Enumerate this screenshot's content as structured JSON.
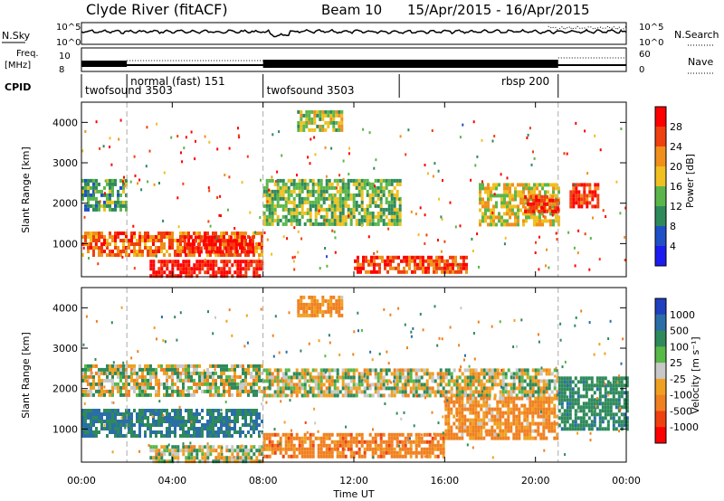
{
  "header": {
    "title": "Clyde River (fitACF)",
    "beam": "Beam 10",
    "date_range": "15/Apr/2015 - 16/Apr/2015"
  },
  "side_labels": {
    "nsky": "N.Sky",
    "freq_line1": "Freq.",
    "freq_line2": "[MHz]",
    "cpid": "CPID",
    "nsearch": "N.Search",
    "nave": "Nave",
    "noise_tick_top": "10^5",
    "noise_tick_bottom": "10^0",
    "freq_tick_top": "10",
    "freq_tick_bottom": "8",
    "nave_tick_top": "60",
    "nave_tick_bottom": "0"
  },
  "cpid_segments": [
    {
      "label": "twofsound 3503",
      "start_hour": 0,
      "end_hour": 2
    },
    {
      "label": "normal (fast) 151",
      "start_hour": 2,
      "end_hour": 8
    },
    {
      "label": "twofsound 3503",
      "start_hour": 8,
      "end_hour": 14
    },
    {
      "label": "rbsp 200",
      "start_hour": 14,
      "end_hour": 21
    }
  ],
  "x_axis": {
    "label": "Time UT",
    "ticks": [
      "00:00",
      "04:00",
      "08:00",
      "12:00",
      "16:00",
      "20:00",
      "00:00"
    ]
  },
  "power_panel": {
    "ylabel": "Slant Range [km]",
    "yticks": [
      "1000",
      "2000",
      "3000",
      "4000"
    ],
    "colorbar_label": "Power [dB]",
    "colorbar_ticks": [
      "4",
      "8",
      "12",
      "16",
      "20",
      "24",
      "28"
    ],
    "colors": [
      "#1c1cf0",
      "#2050c8",
      "#2e8a5a",
      "#5ab64a",
      "#f0c020",
      "#f0901a",
      "#f04010",
      "#ff0000"
    ]
  },
  "velocity_panel": {
    "ylabel": "Slant Range [km]",
    "yticks": [
      "1000",
      "2000",
      "3000",
      "4000"
    ],
    "colorbar_label": "Velocity [m s⁻¹]",
    "colorbar_ticks": [
      "1000",
      "500",
      "100",
      "25",
      "-25",
      "-100",
      "-500",
      "-1000"
    ],
    "colors": [
      "#2040c0",
      "#2a6ea8",
      "#2e8a5a",
      "#58b848",
      "#c8c8c8",
      "#f0a020",
      "#f08020",
      "#f04010",
      "#ff0000"
    ]
  },
  "chart_data": [
    {
      "type": "heatmap",
      "title": "Power",
      "xlabel": "Time UT",
      "ylabel": "Slant Range [km]",
      "xlim": [
        0,
        24
      ],
      "ylim": [
        180,
        4500
      ],
      "colorbar": {
        "label": "Power [dB]",
        "range": [
          0,
          30
        ],
        "ticks": [
          4,
          8,
          12,
          16,
          20,
          24,
          28
        ]
      },
      "regions": [
        {
          "t0": 0.0,
          "t1": 2.0,
          "r0": 1800,
          "r1": 2600,
          "level": 10
        },
        {
          "t0": 0.0,
          "t1": 8.0,
          "r0": 700,
          "r1": 1300,
          "level": 22
        },
        {
          "t0": 3.0,
          "t1": 8.0,
          "r0": 200,
          "r1": 600,
          "level": 28
        },
        {
          "t0": 4.5,
          "t1": 7.5,
          "r0": 800,
          "r1": 1200,
          "level": 28
        },
        {
          "t0": 8.0,
          "t1": 14.0,
          "r0": 1500,
          "r1": 2600,
          "level": 12
        },
        {
          "t0": 12.0,
          "t1": 17.0,
          "r0": 300,
          "r1": 700,
          "level": 24
        },
        {
          "t0": 17.5,
          "t1": 21.0,
          "r0": 1500,
          "r1": 2500,
          "level": 16
        },
        {
          "t0": 19.5,
          "t1": 21.0,
          "r0": 1800,
          "r1": 2200,
          "level": 26
        },
        {
          "t0": 21.5,
          "t1": 22.7,
          "r0": 1900,
          "r1": 2500,
          "level": 26
        },
        {
          "t0": 9.5,
          "t1": 11.5,
          "r0": 3800,
          "r1": 4300,
          "level": 14
        }
      ]
    },
    {
      "type": "heatmap",
      "title": "Velocity",
      "xlabel": "Time UT",
      "ylabel": "Slant Range [km]",
      "xlim": [
        0,
        24
      ],
      "ylim": [
        180,
        4500
      ],
      "colorbar": {
        "label": "Velocity [m s-1]",
        "range": [
          -1000,
          1000
        ],
        "ticks": [
          1000,
          500,
          100,
          25,
          -25,
          -100,
          -500,
          -1000
        ]
      },
      "regions": [
        {
          "t0": 0.0,
          "t1": 8.0,
          "r0": 1800,
          "r1": 2600,
          "level": 0
        },
        {
          "t0": 0.0,
          "t1": 8.0,
          "r0": 800,
          "r1": 1500,
          "level": 300
        },
        {
          "t0": 3.0,
          "t1": 8.0,
          "r0": 200,
          "r1": 600,
          "level": 0
        },
        {
          "t0": 8.0,
          "t1": 21.0,
          "r0": 1800,
          "r1": 2500,
          "level": 0
        },
        {
          "t0": 8.0,
          "t1": 16.0,
          "r0": 300,
          "r1": 900,
          "level": -200
        },
        {
          "t0": 16.0,
          "t1": 21.0,
          "r0": 800,
          "r1": 1800,
          "level": -150
        },
        {
          "t0": 21.0,
          "t1": 24.0,
          "r0": 1000,
          "r1": 2300,
          "level": 200
        },
        {
          "t0": 9.5,
          "t1": 11.5,
          "r0": 3800,
          "r1": 4300,
          "level": -150
        }
      ]
    }
  ]
}
